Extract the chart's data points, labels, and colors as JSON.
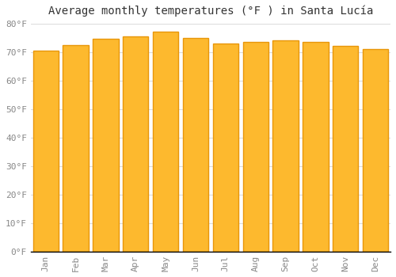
{
  "title": "Average monthly temperatures (°F ) in Santa Lucía",
  "months": [
    "Jan",
    "Feb",
    "Mar",
    "Apr",
    "May",
    "Jun",
    "Jul",
    "Aug",
    "Sep",
    "Oct",
    "Nov",
    "Dec"
  ],
  "values": [
    70.5,
    72.5,
    74.5,
    75.5,
    77.0,
    75.0,
    73.0,
    73.5,
    74.0,
    73.5,
    72.0,
    71.0
  ],
  "bar_color_face": "#FDB92E",
  "bar_color_edge": "#E8960A",
  "ylim": [
    0,
    80
  ],
  "yticks": [
    0,
    10,
    20,
    30,
    40,
    50,
    60,
    70,
    80
  ],
  "ytick_labels": [
    "0°F",
    "10°F",
    "20°F",
    "30°F",
    "40°F",
    "50°F",
    "60°F",
    "70°F",
    "80°F"
  ],
  "background_color": "#ffffff",
  "grid_color": "#dddddd",
  "title_fontsize": 10,
  "tick_fontsize": 8,
  "tick_color": "#888888",
  "bar_width": 0.85
}
